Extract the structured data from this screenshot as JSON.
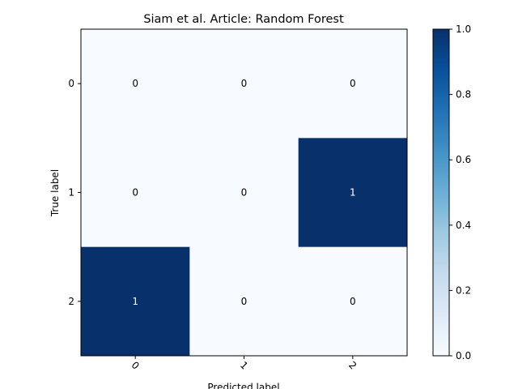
{
  "chart_data": {
    "type": "heatmap",
    "title": "Siam et al. Article: Random Forest",
    "xlabel": "Predicted label",
    "ylabel": "True label",
    "x_categories": [
      "0",
      "1",
      "2"
    ],
    "y_categories": [
      "0",
      "1",
      "2"
    ],
    "values": [
      [
        0,
        0,
        0
      ],
      [
        0,
        0,
        1
      ],
      [
        1,
        0,
        0
      ]
    ],
    "colormap": "Blues",
    "colorbar": {
      "ticks": [
        "0.0",
        "0.2",
        "0.4",
        "0.6",
        "0.8",
        "1.0"
      ],
      "range": [
        0,
        1
      ]
    },
    "colors": {
      "low": "#f7fbff",
      "high": "#08306b",
      "text_on_low": "#000000",
      "text_on_high": "#ffffff"
    }
  }
}
